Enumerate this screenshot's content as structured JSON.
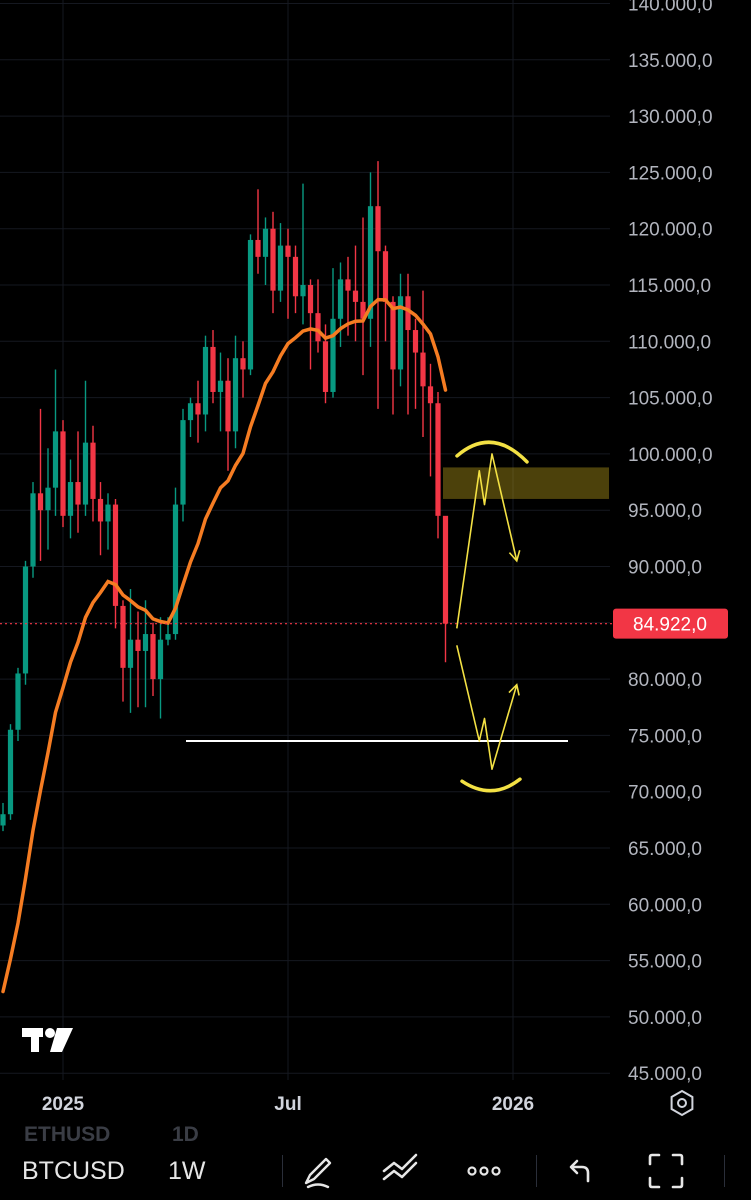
{
  "chart_data": {
    "type": "candlestick",
    "symbol": "BTCUSD",
    "interval": "1W",
    "y_axis": {
      "range": [
        45000,
        140000
      ],
      "tick_values": [
        140000,
        135000,
        130000,
        125000,
        120000,
        115000,
        110000,
        105000,
        100000,
        95000,
        90000,
        85000,
        80000,
        75000,
        70000,
        65000,
        60000,
        55000,
        50000,
        45000
      ],
      "tick_labels": [
        "140.000,0",
        "135.000,0",
        "130.000,0",
        "125.000,0",
        "120.000,0",
        "115.000,0",
        "110.000,0",
        "105.000,0",
        "100.000,0",
        "95.000,0",
        "90.000,0",
        "85.000,0",
        "80.000,0",
        "75.000,0",
        "70.000,0",
        "65.000,0",
        "60.000,0",
        "55.000,0",
        "50.000,0",
        "45.000,0"
      ]
    },
    "x_axis": {
      "tick_labels": [
        "2025",
        "Jul",
        "2026"
      ],
      "tick_candle_index": [
        8,
        38,
        68
      ]
    },
    "last_price": 84922,
    "last_price_label": "84.922,0",
    "candles": [
      [
        67000,
        69000,
        66500,
        68000
      ],
      [
        68000,
        76000,
        67500,
        75500
      ],
      [
        75500,
        81000,
        74500,
        80500
      ],
      [
        80500,
        90500,
        79500,
        90000
      ],
      [
        90000,
        97500,
        89000,
        96500
      ],
      [
        96500,
        104000,
        90500,
        95000
      ],
      [
        95000,
        100500,
        91500,
        97000
      ],
      [
        97000,
        107500,
        94500,
        102000
      ],
      [
        102000,
        103000,
        93500,
        94500
      ],
      [
        94500,
        99500,
        92500,
        97500
      ],
      [
        97500,
        102000,
        93000,
        95500
      ],
      [
        95500,
        106500,
        94500,
        101000
      ],
      [
        101000,
        102500,
        94000,
        96000
      ],
      [
        96000,
        97500,
        91000,
        94000
      ],
      [
        94000,
        96500,
        91500,
        95500
      ],
      [
        95500,
        96000,
        84500,
        86500
      ],
      [
        86500,
        87000,
        78000,
        81000
      ],
      [
        81000,
        88000,
        77000,
        83500
      ],
      [
        83500,
        86000,
        77500,
        82500
      ],
      [
        82500,
        87000,
        77500,
        84000
      ],
      [
        84000,
        85000,
        78500,
        80000
      ],
      [
        80000,
        85500,
        76500,
        83500
      ],
      [
        83500,
        85500,
        83000,
        84000
      ],
      [
        84000,
        97000,
        83500,
        95500
      ],
      [
        95500,
        104000,
        94000,
        103000
      ],
      [
        103000,
        105000,
        101500,
        104500
      ],
      [
        104500,
        106500,
        101000,
        103500
      ],
      [
        103500,
        110500,
        102000,
        109500
      ],
      [
        109500,
        111000,
        104500,
        105500
      ],
      [
        105500,
        109000,
        102000,
        106500
      ],
      [
        106500,
        108500,
        98500,
        102000
      ],
      [
        102000,
        110500,
        100500,
        108500
      ],
      [
        108500,
        110000,
        105000,
        107500
      ],
      [
        107500,
        119500,
        107000,
        119000
      ],
      [
        119000,
        123500,
        116000,
        117500
      ],
      [
        117500,
        121000,
        115000,
        120000
      ],
      [
        120000,
        121500,
        112500,
        114500
      ],
      [
        114500,
        120500,
        113500,
        118500
      ],
      [
        118500,
        120000,
        112000,
        117500
      ],
      [
        117500,
        118500,
        112500,
        114000
      ],
      [
        114000,
        124000,
        111500,
        115000
      ],
      [
        115000,
        115500,
        107500,
        112500
      ],
      [
        112500,
        115500,
        109000,
        110000
      ],
      [
        110000,
        111500,
        104500,
        105500
      ],
      [
        105500,
        116500,
        105000,
        112000
      ],
      [
        112000,
        117000,
        109500,
        115500
      ],
      [
        115500,
        117500,
        110500,
        114500
      ],
      [
        114500,
        118500,
        110000,
        113500
      ],
      [
        113500,
        121000,
        107000,
        112000
      ],
      [
        112000,
        125000,
        109500,
        122000
      ],
      [
        122000,
        126000,
        104000,
        118000
      ],
      [
        118000,
        118500,
        110000,
        113500
      ],
      [
        113500,
        114000,
        103500,
        107500
      ],
      [
        107500,
        116000,
        106000,
        114000
      ],
      [
        114000,
        116000,
        103500,
        111000
      ],
      [
        111000,
        112000,
        104000,
        109000
      ],
      [
        109000,
        114500,
        101500,
        106000
      ],
      [
        106000,
        108000,
        98000,
        104500
      ],
      [
        104500,
        105500,
        92500,
        94500
      ],
      [
        94500,
        94000,
        81500,
        84922
      ]
    ],
    "ema_overlay_color": "#f57c22",
    "bullish_color": "#089981",
    "bearish_color": "#f23645",
    "annotations": {
      "support_line_value": 74500,
      "resistance_zone": [
        96000,
        98800
      ],
      "bullish_path": [
        [
          60.5,
          84500
        ],
        [
          63.5,
          98500
        ],
        [
          64.2,
          95500
        ],
        [
          65.2,
          100000
        ],
        [
          68.5,
          90500
        ]
      ],
      "bearish_path": [
        [
          60.5,
          83000
        ],
        [
          63.5,
          74500
        ],
        [
          64.2,
          76500
        ],
        [
          65.2,
          72000
        ],
        [
          68.5,
          79500
        ]
      ],
      "projection_color": "#f3e144"
    }
  },
  "toolbar": {
    "ghost_symbol": "ETHUSD",
    "ghost_interval": "1D",
    "symbol": "BTCUSD",
    "interval": "1W"
  }
}
